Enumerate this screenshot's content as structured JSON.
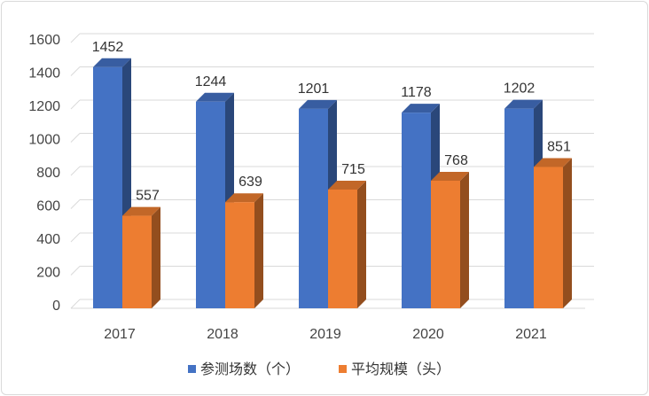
{
  "chart_data": {
    "type": "bar",
    "style": "3d-clustered-column",
    "categories": [
      "2017",
      "2018",
      "2019",
      "2020",
      "2021"
    ],
    "series": [
      {
        "name": "参测场数（个）",
        "color": "#4472C4",
        "values": [
          1452,
          1244,
          1201,
          1178,
          1202
        ]
      },
      {
        "name": "平均规模（头）",
        "color": "#ED7D31",
        "values": [
          557,
          639,
          715,
          768,
          851
        ]
      }
    ],
    "y_ticks": [
      "0",
      "200",
      "400",
      "600",
      "800",
      "1000",
      "1200",
      "1400",
      "1600"
    ],
    "ylim": [
      0,
      1600
    ],
    "grid": true,
    "legend_position": "bottom"
  }
}
